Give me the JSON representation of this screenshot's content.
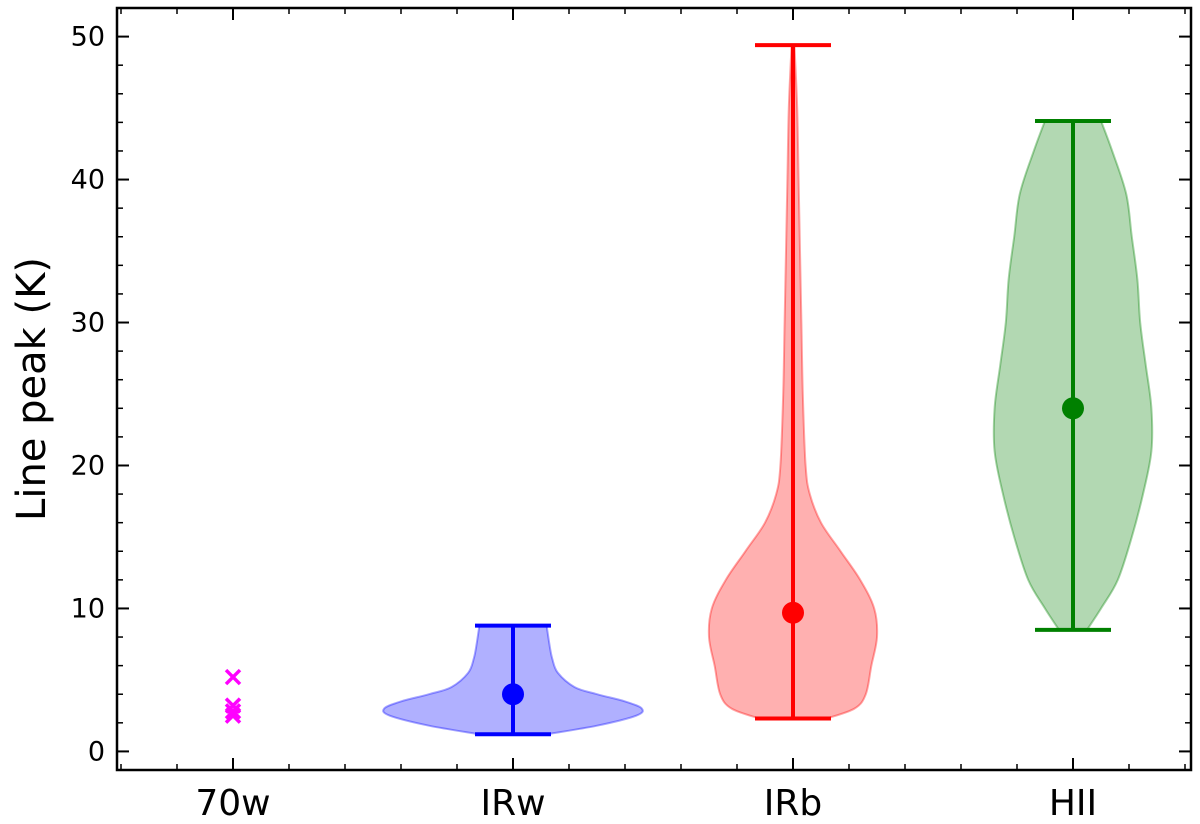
{
  "chart_data": {
    "type": "violin",
    "title": "",
    "xlabel": "",
    "ylabel": "Line peak (K)",
    "ylim": [
      -1.3,
      52
    ],
    "yticks": [
      0,
      10,
      20,
      30,
      40,
      50
    ],
    "ytick_labels": [
      "0",
      "10",
      "20",
      "30",
      "40",
      "50"
    ],
    "categories": [
      "70w",
      "IRw",
      "IRb",
      "HII"
    ],
    "grid": false,
    "legend": "none",
    "groups": [
      {
        "category": "70w",
        "plot": "points",
        "marker": "x",
        "color": "#ff00ff",
        "values": [
          5.2,
          3.2,
          2.8,
          2.5
        ]
      },
      {
        "category": "IRw",
        "plot": "violin",
        "color": "#0000ff",
        "fill": "#b0b0ff",
        "min": 1.2,
        "max": 8.8,
        "median": 4.0,
        "profile": [
          [
            1.2,
            0.12
          ],
          [
            1.8,
            0.3
          ],
          [
            2.5,
            0.44
          ],
          [
            3.0,
            0.46
          ],
          [
            3.5,
            0.4
          ],
          [
            4.0,
            0.3
          ],
          [
            4.5,
            0.22
          ],
          [
            5.5,
            0.16
          ],
          [
            6.5,
            0.14
          ],
          [
            7.5,
            0.13
          ],
          [
            8.8,
            0.12
          ]
        ]
      },
      {
        "category": "IRb",
        "plot": "violin",
        "color": "#ff0000",
        "fill": "#ffb0b0",
        "min": 2.3,
        "max": 49.4,
        "median": 9.7,
        "profile": [
          [
            2.3,
            0.12
          ],
          [
            3.0,
            0.22
          ],
          [
            4.0,
            0.26
          ],
          [
            6.0,
            0.28
          ],
          [
            8.0,
            0.3
          ],
          [
            10.0,
            0.29
          ],
          [
            12.0,
            0.24
          ],
          [
            14.0,
            0.17
          ],
          [
            16.0,
            0.1
          ],
          [
            18.0,
            0.06
          ],
          [
            20.0,
            0.045
          ],
          [
            25.0,
            0.035
          ],
          [
            30.0,
            0.03
          ],
          [
            35.0,
            0.025
          ],
          [
            40.0,
            0.02
          ],
          [
            45.0,
            0.015
          ],
          [
            49.4,
            0.005
          ]
        ]
      },
      {
        "category": "HII",
        "plot": "violin",
        "color": "#008000",
        "fill": "#b2d8b2",
        "min": 8.5,
        "max": 44.1,
        "median": 24.0,
        "profile": [
          [
            8.5,
            0.05
          ],
          [
            10.0,
            0.1
          ],
          [
            12.0,
            0.16
          ],
          [
            15.0,
            0.21
          ],
          [
            18.0,
            0.25
          ],
          [
            21.0,
            0.28
          ],
          [
            24.0,
            0.28
          ],
          [
            27.0,
            0.26
          ],
          [
            30.0,
            0.24
          ],
          [
            33.0,
            0.23
          ],
          [
            36.0,
            0.21
          ],
          [
            39.0,
            0.19
          ],
          [
            42.0,
            0.14
          ],
          [
            44.1,
            0.1
          ]
        ]
      }
    ]
  }
}
